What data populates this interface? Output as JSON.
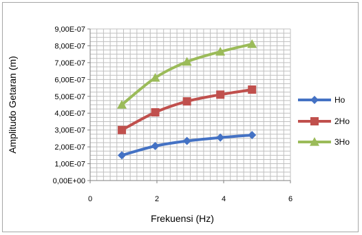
{
  "chart_data": {
    "type": "line",
    "xlabel": "Frekuensi (Hz)",
    "ylabel": "Amplitudo Getaran (m)",
    "xlim": [
      0,
      6
    ],
    "ylim": [
      0,
      9e-07
    ],
    "x_ticks": [
      0,
      2,
      4,
      6
    ],
    "x_tick_labels": [
      "0",
      "2",
      "4",
      "6"
    ],
    "y_ticks": [
      0,
      1e-07,
      2e-07,
      3e-07,
      4e-07,
      5e-07,
      6e-07,
      7e-07,
      8e-07,
      9e-07
    ],
    "y_tick_labels": [
      "0,00E+00",
      "1,00E-07",
      "2,00E-07",
      "3,00E-07",
      "4,00E-07",
      "5,00E-07",
      "6,00E-07",
      "7,00E-07",
      "8,00E-07",
      "9,00E-07"
    ],
    "grid": true,
    "legend_position": "right",
    "series": [
      {
        "name": "Ho",
        "color": "#4472c4",
        "marker": "diamond",
        "x": [
          0.95,
          1.95,
          2.9,
          3.9,
          4.85
        ],
        "y": [
          1.5e-07,
          2.05e-07,
          2.35e-07,
          2.55e-07,
          2.7e-07
        ]
      },
      {
        "name": "2Ho",
        "color": "#c0504d",
        "marker": "square",
        "x": [
          0.95,
          1.95,
          2.9,
          3.9,
          4.85
        ],
        "y": [
          3e-07,
          4.05e-07,
          4.7e-07,
          5.1e-07,
          5.4e-07
        ]
      },
      {
        "name": "3Ho",
        "color": "#9bbb59",
        "marker": "triangle",
        "x": [
          0.95,
          1.95,
          2.9,
          3.9,
          4.85
        ],
        "y": [
          4.5e-07,
          6.1e-07,
          7.05e-07,
          7.65e-07,
          8.1e-07
        ]
      }
    ]
  }
}
